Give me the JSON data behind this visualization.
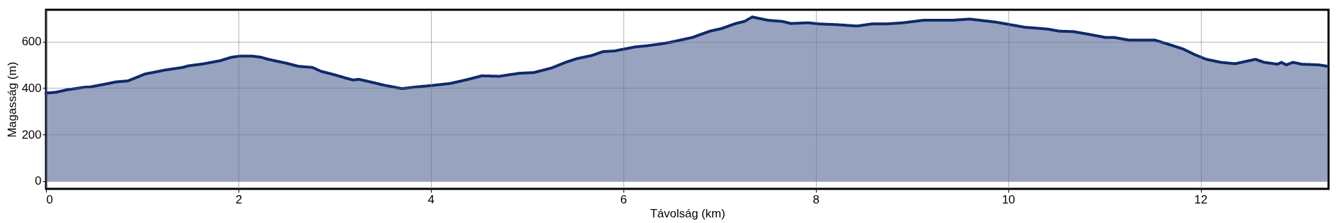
{
  "chart_data": {
    "type": "area",
    "xlabel": "Távolság (km)",
    "ylabel": "Magasság (m)",
    "xlim": [
      0,
      13.33
    ],
    "xticks": [
      0,
      2,
      4,
      6,
      8,
      10,
      12
    ],
    "ylim": [
      -33,
      737
    ],
    "yticks": [
      0,
      200,
      400,
      600
    ],
    "grid": true,
    "marker": "none",
    "line_style": "solid",
    "x": [
      0,
      0.1,
      0.22,
      0.4,
      0.46,
      0.61,
      0.73,
      0.85,
      1.03,
      1.12,
      1.24,
      1.42,
      1.48,
      1.63,
      1.72,
      1.81,
      1.93,
      2.02,
      2.14,
      2.23,
      2.32,
      2.5,
      2.62,
      2.77,
      2.86,
      3.01,
      3.1,
      3.19,
      3.25,
      3.4,
      3.52,
      3.7,
      3.82,
      4.0,
      4.2,
      4.35,
      4.53,
      4.71,
      4.92,
      5.07,
      5.25,
      5.4,
      5.52,
      5.67,
      5.79,
      5.91,
      6.12,
      6.24,
      6.39,
      6.51,
      6.72,
      6.9,
      7.02,
      7.17,
      7.26,
      7.34,
      7.5,
      7.65,
      7.74,
      7.92,
      8.04,
      8.22,
      8.43,
      8.58,
      8.73,
      8.91,
      9.12,
      9.42,
      9.6,
      9.87,
      10.02,
      10.17,
      10.41,
      10.53,
      10.68,
      10.83,
      11.01,
      11.1,
      11.25,
      11.52,
      11.67,
      11.82,
      11.94,
      12.06,
      12.21,
      12.36,
      12.57,
      12.66,
      12.8,
      12.84,
      12.89,
      12.96,
      13.05,
      13.23,
      13.32
    ],
    "series": [
      {
        "color": "#0f2a6b",
        "values": [
          379,
          382,
          393,
          404,
          405,
          417,
          427,
          431,
          461,
          468,
          478,
          489,
          496,
          504,
          511,
          518,
          533,
          538,
          538,
          533,
          523,
          507,
          494,
          489,
          472,
          456,
          445,
          435,
          438,
          424,
          412,
          398,
          404,
          411,
          420,
          434,
          453,
          451,
          464,
          467,
          486,
          511,
          527,
          540,
          557,
          560,
          577,
          582,
          590,
          599,
          618,
          645,
          656,
          678,
          687,
          706,
          692,
          687,
          678,
          681,
          676,
          673,
          667,
          676,
          676,
          681,
          692,
          692,
          697,
          684,
          673,
          662,
          654,
          645,
          643,
          632,
          618,
          618,
          607,
          607,
          588,
          568,
          544,
          524,
          511,
          505,
          524,
          511,
          503,
          511,
          500,
          511,
          503,
          500,
          494
        ]
      }
    ]
  }
}
